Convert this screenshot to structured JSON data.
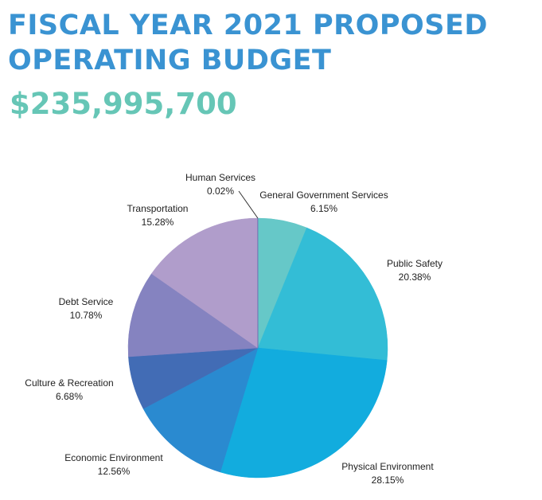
{
  "header": {
    "title_line1": "FISCAL YEAR 2021 PROPOSED",
    "title_line2": "OPERATING BUDGET",
    "total": "$235,995,700"
  },
  "colors": {
    "title": "#3a93d2",
    "total": "#66c6b6"
  },
  "chart_data": {
    "type": "pie",
    "start": "12 o'clock",
    "direction": "clockwise",
    "slices": [
      {
        "label": "General Government Services",
        "value": 6.15,
        "display": "6.15%",
        "color": "#66c8c8"
      },
      {
        "label": "Public Safety",
        "value": 20.38,
        "display": "20.38%",
        "color": "#33bdd6"
      },
      {
        "label": "Physical Environment",
        "value": 28.15,
        "display": "28.15%",
        "color": "#12acde"
      },
      {
        "label": "Economic Environment",
        "value": 12.56,
        "display": "12.56%",
        "color": "#2a8ad0"
      },
      {
        "label": "Culture & Recreation",
        "value": 6.68,
        "display": "6.68%",
        "color": "#426cb5"
      },
      {
        "label": "Debt Service",
        "value": 10.78,
        "display": "10.78%",
        "color": "#8583c0"
      },
      {
        "label": "Transportation",
        "value": 15.28,
        "display": "15.28%",
        "color": "#b09dcb"
      },
      {
        "label": "Human Services",
        "value": 0.02,
        "display": "0.02%",
        "color": "#5f5fa8"
      }
    ]
  }
}
